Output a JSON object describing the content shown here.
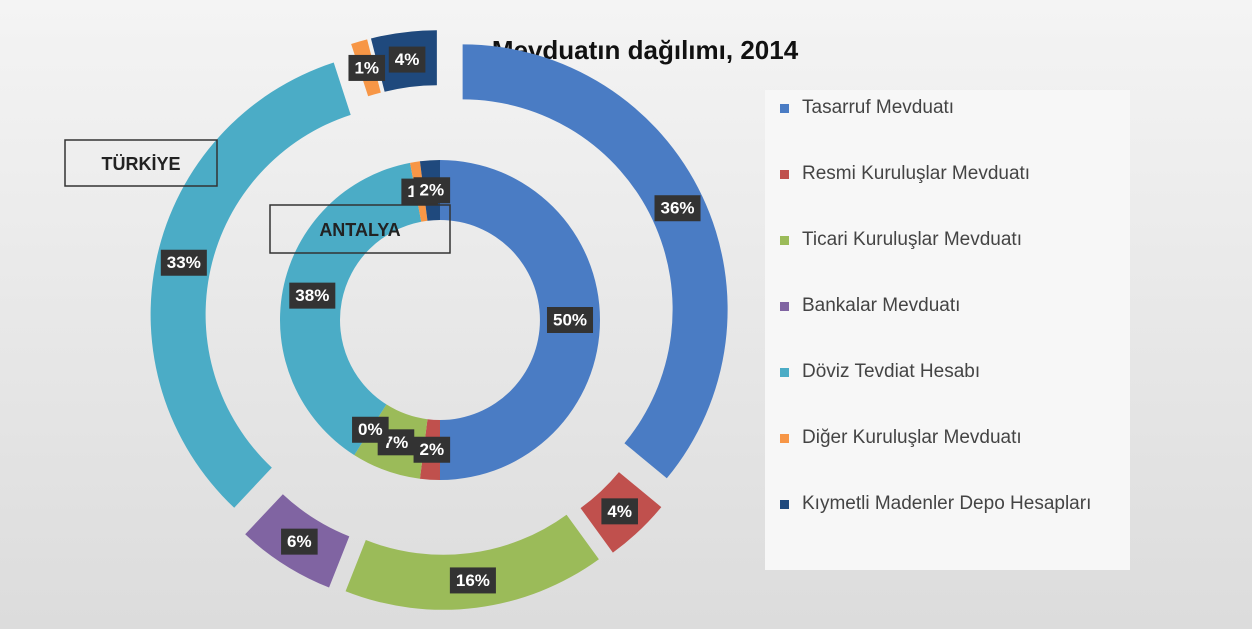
{
  "chart_data": {
    "type": "doughnut",
    "title": "Mevduatın dağılımı, 2014",
    "categories": [
      "Tasarruf Mevduatı",
      "Resmi Kuruluşlar  Mevduatı",
      "Ticari Kuruluşlar  Mevduatı",
      "Bankalar Mevduatı",
      "Döviz Tevdiat Hesabı",
      "Diğer Kuruluşlar  Mevduatı",
      "Kıymetli Madenler  Depo Hesapları"
    ],
    "colors": [
      "#4a7cc4",
      "#c0504d",
      "#9bbb59",
      "#8064a2",
      "#4bacc6",
      "#f79646",
      "#1f497d"
    ],
    "series": [
      {
        "name": "ANTALYA",
        "values": [
          50,
          2,
          7,
          0,
          38,
          1,
          2
        ],
        "value_labels": [
          "50%",
          "2%",
          "7%",
          "0%",
          "38%",
          "1%",
          "2%"
        ]
      },
      {
        "name": "TÜRKİYE",
        "values": [
          36,
          4,
          16,
          6,
          33,
          1,
          4
        ],
        "value_labels": [
          "36%",
          "4%",
          "16%",
          "6%",
          "33%",
          "1%",
          "4%"
        ]
      }
    ]
  }
}
